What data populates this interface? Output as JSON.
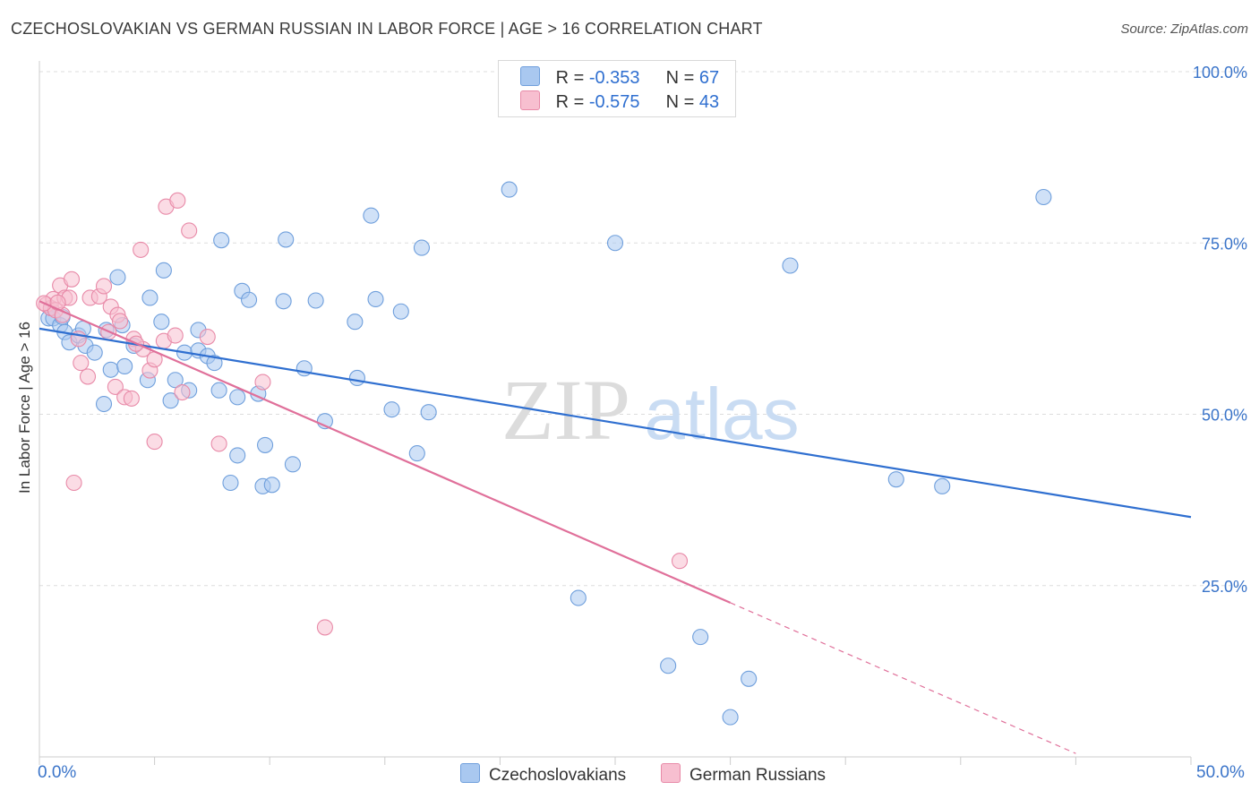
{
  "title": "CZECHOSLOVAKIAN VS GERMAN RUSSIAN IN LABOR FORCE | AGE > 16 CORRELATION CHART",
  "source": "Source: ZipAtlas.com",
  "watermark": {
    "zip": "ZIP",
    "atlas": "atlas"
  },
  "legend": {
    "rows": [
      {
        "r_label": "R = ",
        "r_value": "-0.353",
        "n_label": "N = ",
        "n_value": "67",
        "color": "#a9c8f0",
        "border": "#6f9fdc"
      },
      {
        "r_label": "R = ",
        "r_value": "-0.575",
        "n_label": "N = ",
        "n_value": "43",
        "color": "#f7bfd0",
        "border": "#e88aa8"
      }
    ]
  },
  "bottom_legend": [
    {
      "label": "Czechoslovakians",
      "color": "#a9c8f0",
      "border": "#6f9fdc"
    },
    {
      "label": "German Russians",
      "color": "#f7bfd0",
      "border": "#e88aa8"
    }
  ],
  "chart_data": {
    "type": "scatter",
    "title": "CZECHOSLOVAKIAN VS GERMAN RUSSIAN IN LABOR FORCE | AGE > 16 CORRELATION CHART",
    "xlabel": "",
    "ylabel": "In Labor Force | Age > 16",
    "xlim": [
      0,
      50
    ],
    "ylim": [
      0,
      102
    ],
    "x_tick_labels": [
      "0.0%",
      "50.0%"
    ],
    "y_ticks": [
      25,
      50,
      75,
      100
    ],
    "y_tick_labels": [
      "25.0%",
      "50.0%",
      "75.0%",
      "100.0%"
    ],
    "grid": true,
    "series": [
      {
        "name": "Czechoslovakians",
        "color": "#6f9fdc",
        "fill": "#a9c8f0",
        "trend_color": "#2f6fd0",
        "trend": {
          "x0": 0,
          "y0": 62.5,
          "x1": 50,
          "y1": 35
        },
        "points": [
          [
            0.4,
            64
          ],
          [
            0.6,
            64
          ],
          [
            0.9,
            63
          ],
          [
            1.1,
            62
          ],
          [
            1.3,
            60.5
          ],
          [
            1.7,
            61.5
          ],
          [
            1.9,
            62.5
          ],
          [
            2.0,
            60
          ],
          [
            2.4,
            59
          ],
          [
            2.8,
            51.5
          ],
          [
            3.1,
            56.5
          ],
          [
            3.4,
            70
          ],
          [
            3.6,
            63
          ],
          [
            3.7,
            57
          ],
          [
            4.1,
            60
          ],
          [
            4.7,
            55
          ],
          [
            4.8,
            67
          ],
          [
            5.3,
            63.5
          ],
          [
            5.4,
            71
          ],
          [
            5.7,
            52
          ],
          [
            5.9,
            55
          ],
          [
            6.3,
            59
          ],
          [
            6.5,
            53.5
          ],
          [
            6.9,
            59.3
          ],
          [
            6.9,
            62.3
          ],
          [
            7.3,
            58.5
          ],
          [
            7.6,
            57.5
          ],
          [
            7.8,
            53.5
          ],
          [
            7.9,
            75.4
          ],
          [
            8.3,
            40
          ],
          [
            8.6,
            44
          ],
          [
            8.6,
            52.5
          ],
          [
            8.8,
            68
          ],
          [
            9.1,
            66.7
          ],
          [
            9.5,
            53
          ],
          [
            9.7,
            39.5
          ],
          [
            9.8,
            45.5
          ],
          [
            10.1,
            39.7
          ],
          [
            10.6,
            66.5
          ],
          [
            10.7,
            75.5
          ],
          [
            11.0,
            42.7
          ],
          [
            11.5,
            56.7
          ],
          [
            12.0,
            66.6
          ],
          [
            12.4,
            49
          ],
          [
            13.7,
            63.5
          ],
          [
            13.8,
            55.3
          ],
          [
            14.4,
            79
          ],
          [
            14.6,
            66.8
          ],
          [
            15.3,
            50.7
          ],
          [
            15.7,
            65
          ],
          [
            16.4,
            44.3
          ],
          [
            16.6,
            74.3
          ],
          [
            16.9,
            50.3
          ],
          [
            20.4,
            82.8
          ],
          [
            23.4,
            23.2
          ],
          [
            25.0,
            75
          ],
          [
            27.3,
            13.3
          ],
          [
            28.7,
            17.5
          ],
          [
            30.0,
            5.8
          ],
          [
            30.8,
            11.4
          ],
          [
            32.6,
            71.7
          ],
          [
            37.2,
            40.5
          ],
          [
            39.2,
            39.5
          ],
          [
            43.6,
            81.7
          ],
          [
            0.5,
            65.5
          ],
          [
            1.0,
            64.2
          ],
          [
            2.9,
            62.3
          ]
        ]
      },
      {
        "name": "German Russians",
        "color": "#e88aa8",
        "fill": "#f7bfd0",
        "trend_color": "#e0709a",
        "trend": {
          "x0": 0,
          "y0": 66.5,
          "x1": 30,
          "y1": 22.5
        },
        "trend_ext": {
          "x0": 30,
          "y0": 22.5,
          "x1": 45,
          "y1": 0.5
        },
        "points": [
          [
            0.3,
            66
          ],
          [
            0.5,
            65.5
          ],
          [
            0.6,
            66.8
          ],
          [
            0.7,
            65.2
          ],
          [
            0.9,
            68.8
          ],
          [
            1.0,
            64.5
          ],
          [
            1.1,
            67
          ],
          [
            1.3,
            67
          ],
          [
            1.4,
            69.7
          ],
          [
            1.5,
            40
          ],
          [
            1.7,
            61
          ],
          [
            1.8,
            57.5
          ],
          [
            2.1,
            55.5
          ],
          [
            2.2,
            67
          ],
          [
            2.6,
            67.2
          ],
          [
            2.8,
            68.7
          ],
          [
            3.0,
            62
          ],
          [
            3.1,
            65.7
          ],
          [
            3.3,
            54
          ],
          [
            3.4,
            64.5
          ],
          [
            3.5,
            63.6
          ],
          [
            3.7,
            52.5
          ],
          [
            4.0,
            52.3
          ],
          [
            4.1,
            61
          ],
          [
            4.4,
            74
          ],
          [
            4.5,
            59.5
          ],
          [
            4.8,
            56.4
          ],
          [
            5.0,
            58
          ],
          [
            5.0,
            46
          ],
          [
            5.4,
            60.7
          ],
          [
            5.5,
            80.3
          ],
          [
            5.9,
            61.5
          ],
          [
            6.0,
            81.2
          ],
          [
            6.2,
            53.2
          ],
          [
            6.5,
            76.8
          ],
          [
            7.3,
            61.3
          ],
          [
            7.8,
            45.7
          ],
          [
            9.7,
            54.7
          ],
          [
            12.4,
            18.9
          ],
          [
            27.8,
            28.6
          ],
          [
            0.2,
            66.2
          ],
          [
            0.8,
            66.3
          ],
          [
            4.2,
            60.3
          ]
        ]
      }
    ]
  }
}
